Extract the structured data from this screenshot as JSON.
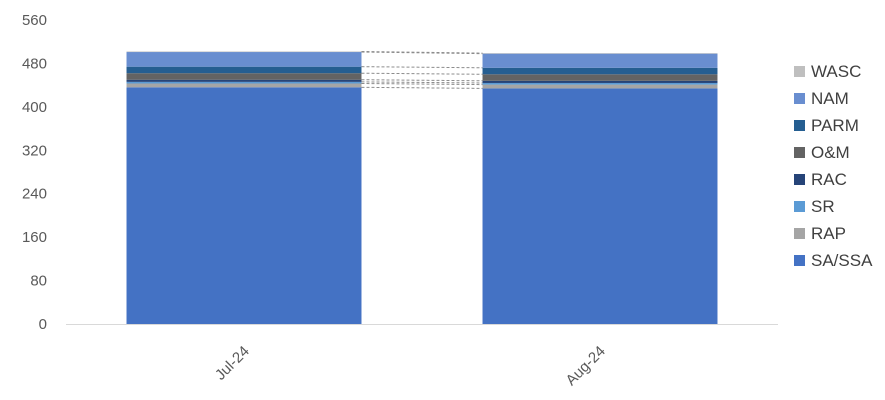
{
  "chart_data": {
    "type": "bar",
    "stacked": true,
    "categories": [
      "Jul-24",
      "Aug-24"
    ],
    "series": [
      {
        "name": "SA/SSA",
        "values": [
          436,
          434
        ],
        "color": "#4472C4"
      },
      {
        "name": "RAP",
        "values": [
          7,
          7
        ],
        "color": "#A5A5A5"
      },
      {
        "name": "SR",
        "values": [
          3,
          3
        ],
        "color": "#5B9BD5"
      },
      {
        "name": "RAC",
        "values": [
          4,
          4
        ],
        "color": "#264478"
      },
      {
        "name": "O&M",
        "values": [
          12,
          12
        ],
        "color": "#636363"
      },
      {
        "name": "PARM",
        "values": [
          12,
          12
        ],
        "color": "#255E91"
      },
      {
        "name": "NAM",
        "values": [
          27,
          26
        ],
        "color": "#698ED0"
      },
      {
        "name": "WASC",
        "values": [
          1,
          1
        ],
        "color": "#BFBFBF"
      }
    ],
    "yticks": [
      "0",
      "80",
      "160",
      "240",
      "320",
      "400",
      "480",
      "560"
    ],
    "ylim": [
      0,
      560
    ],
    "series_lines": true,
    "legend_position": "right",
    "gridlines": false
  }
}
